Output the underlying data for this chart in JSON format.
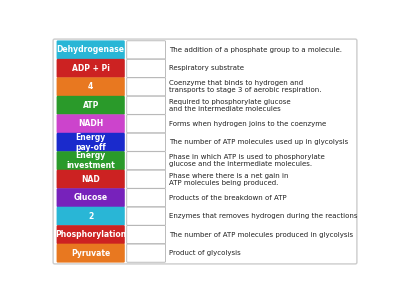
{
  "background_color": "#ffffff",
  "outer_border_color": "#cccccc",
  "items": [
    {
      "label": "Dehydrogenase",
      "color": "#29b6d6"
    },
    {
      "label": "ADP + Pi",
      "color": "#cc2222"
    },
    {
      "label": "4",
      "color": "#e87820"
    },
    {
      "label": "ATP",
      "color": "#2a9a2a"
    },
    {
      "label": "NADH",
      "color": "#cc44cc"
    },
    {
      "label": "Energy\npay-off",
      "color": "#1a2acc"
    },
    {
      "label": "Energy\ninvestment",
      "color": "#2a9a2a"
    },
    {
      "label": "NAD",
      "color": "#cc2222"
    },
    {
      "label": "Glucose",
      "color": "#7722bb"
    },
    {
      "label": "2",
      "color": "#29b6d6"
    },
    {
      "label": "Phosphorylation",
      "color": "#cc2222"
    },
    {
      "label": "Pyruvate",
      "color": "#e87820"
    }
  ],
  "descriptions": [
    "The addition of a phosphate group to a molecule.",
    "Respiratory substrate",
    "Coenzyme that binds to hydrogen and\ntransports to stage 3 of aerobic respiration.",
    "Required to phosphorylate glucose\nand the intermediate molecules",
    "Forms when hydrogen joins to the coenzyme",
    "The number of ATP molecules used up in glycolysis",
    "Phase in which ATP is used to phosphorylate\nglucose and the intermediate molecules.",
    "Phase where there is a net gain in\nATP molecules being produced.",
    "Products of the breakdown of ATP",
    "Enzymes that removes hydrogen during the reactions",
    "The number of ATP molecules produced in glycolysis",
    "Product of glycolysis"
  ]
}
